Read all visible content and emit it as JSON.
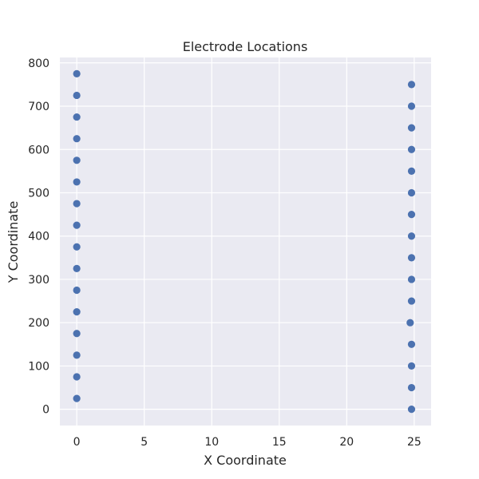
{
  "chart_data": {
    "type": "scatter",
    "title": "Electrode Locations",
    "xlabel": "X Coordinate",
    "ylabel": "Y Coordinate",
    "xlim": [
      -1.25,
      26.25
    ],
    "ylim": [
      -37.5,
      812.5
    ],
    "xticks": [
      0,
      5,
      10,
      15,
      20,
      25
    ],
    "yticks": [
      0,
      100,
      200,
      300,
      400,
      500,
      600,
      700,
      800
    ],
    "grid": true,
    "color": "#4c72b0",
    "background": "#eaeaf2",
    "series": [
      {
        "points": [
          {
            "x": 0,
            "y": 25
          },
          {
            "x": 0,
            "y": 75
          },
          {
            "x": 0,
            "y": 125
          },
          {
            "x": 0,
            "y": 175
          },
          {
            "x": 0,
            "y": 225
          },
          {
            "x": 0,
            "y": 275
          },
          {
            "x": 0,
            "y": 325
          },
          {
            "x": 0,
            "y": 375
          },
          {
            "x": 0,
            "y": 425
          },
          {
            "x": 0,
            "y": 475
          },
          {
            "x": 0,
            "y": 525
          },
          {
            "x": 0,
            "y": 575
          },
          {
            "x": 0,
            "y": 625
          },
          {
            "x": 0,
            "y": 675
          },
          {
            "x": 0,
            "y": 725
          },
          {
            "x": 0,
            "y": 775
          },
          {
            "x": 24.8,
            "y": 0
          },
          {
            "x": 24.8,
            "y": 50
          },
          {
            "x": 24.8,
            "y": 100
          },
          {
            "x": 24.8,
            "y": 150
          },
          {
            "x": 24.7,
            "y": 200
          },
          {
            "x": 24.8,
            "y": 250
          },
          {
            "x": 24.8,
            "y": 300
          },
          {
            "x": 24.8,
            "y": 350
          },
          {
            "x": 24.8,
            "y": 400
          },
          {
            "x": 24.8,
            "y": 450
          },
          {
            "x": 24.8,
            "y": 500
          },
          {
            "x": 24.8,
            "y": 550
          },
          {
            "x": 24.8,
            "y": 600
          },
          {
            "x": 24.8,
            "y": 650
          },
          {
            "x": 24.8,
            "y": 700
          },
          {
            "x": 24.8,
            "y": 750
          }
        ]
      }
    ]
  }
}
